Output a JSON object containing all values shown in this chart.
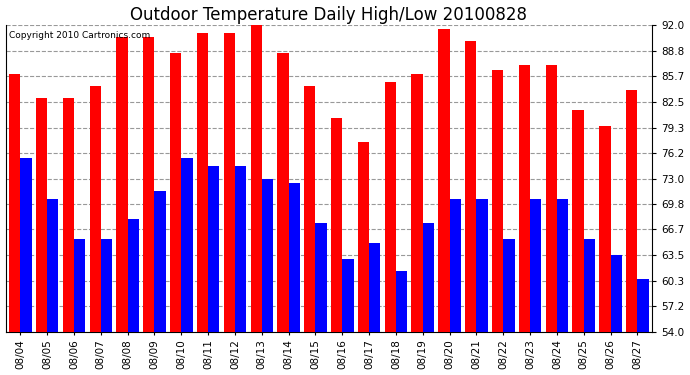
{
  "title": "Outdoor Temperature Daily High/Low 20100828",
  "copyright": "Copyright 2010 Cartronics.com",
  "dates": [
    "08/04",
    "08/05",
    "08/06",
    "08/07",
    "08/08",
    "08/09",
    "08/10",
    "08/11",
    "08/12",
    "08/13",
    "08/14",
    "08/15",
    "08/16",
    "08/17",
    "08/18",
    "08/19",
    "08/20",
    "08/21",
    "08/22",
    "08/23",
    "08/24",
    "08/25",
    "08/26",
    "08/27"
  ],
  "highs": [
    86.0,
    83.0,
    83.0,
    84.5,
    90.5,
    90.5,
    88.5,
    91.0,
    91.0,
    92.0,
    88.5,
    84.5,
    80.5,
    77.5,
    85.0,
    86.0,
    91.5,
    90.0,
    86.5,
    87.0,
    87.0,
    81.5,
    79.5,
    84.0
  ],
  "lows": [
    75.5,
    70.5,
    65.5,
    65.5,
    68.0,
    71.5,
    75.5,
    74.5,
    74.5,
    73.0,
    72.5,
    67.5,
    63.0,
    65.0,
    61.5,
    67.5,
    70.5,
    70.5,
    65.5,
    70.5,
    70.5,
    65.5,
    63.5,
    60.5
  ],
  "high_color": "#FF0000",
  "low_color": "#0000FF",
  "bg_color": "#FFFFFF",
  "grid_color": "#999999",
  "ylim_min": 54.0,
  "ylim_max": 92.0,
  "yticks": [
    54.0,
    57.2,
    60.3,
    63.5,
    66.7,
    69.8,
    73.0,
    76.2,
    79.3,
    82.5,
    85.7,
    88.8,
    92.0
  ],
  "bar_width": 0.42,
  "title_fontsize": 12,
  "tick_fontsize": 7.5,
  "copyright_fontsize": 6.5
}
